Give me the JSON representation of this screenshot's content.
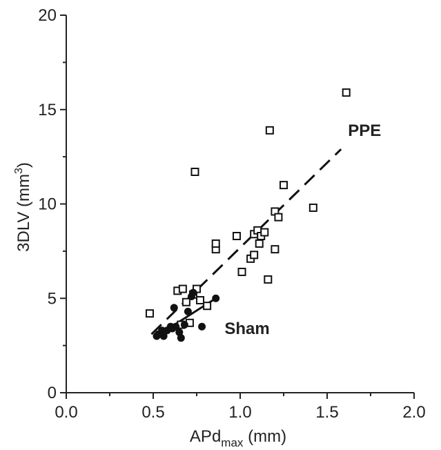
{
  "chart_data": {
    "type": "scatter",
    "title": "",
    "xlabel": {
      "main": "APd",
      "sub": "max",
      "unit": " (mm)"
    },
    "ylabel": {
      "main": "3DLV (mm",
      "sup": "3",
      "close": ")"
    },
    "xlim": [
      0,
      2
    ],
    "ylim": [
      0,
      20
    ],
    "xticks": [
      "0.0",
      "0.5",
      "1.0",
      "1.5",
      "2.0"
    ],
    "yticks": [
      "0",
      "5",
      "10",
      "15",
      "20"
    ],
    "grid": false,
    "legend": "none",
    "series": [
      {
        "name": "PPE",
        "marker": "open-square",
        "color": "#111111",
        "fit": {
          "style": "dashed",
          "x": [
            0.49,
            1.58
          ],
          "y": [
            3.1,
            12.9
          ]
        },
        "points": [
          [
            0.48,
            4.2
          ],
          [
            0.64,
            5.4
          ],
          [
            0.66,
            3.6
          ],
          [
            0.67,
            5.5
          ],
          [
            0.69,
            4.8
          ],
          [
            0.71,
            3.7
          ],
          [
            0.73,
            5.2
          ],
          [
            0.74,
            11.7
          ],
          [
            0.75,
            5.5
          ],
          [
            0.77,
            4.9
          ],
          [
            0.81,
            4.6
          ],
          [
            0.86,
            7.6
          ],
          [
            0.86,
            7.9
          ],
          [
            0.98,
            8.3
          ],
          [
            1.01,
            6.4
          ],
          [
            1.06,
            7.1
          ],
          [
            1.08,
            7.3
          ],
          [
            1.08,
            8.4
          ],
          [
            1.1,
            8.6
          ],
          [
            1.11,
            7.9
          ],
          [
            1.12,
            8.3
          ],
          [
            1.14,
            8.5
          ],
          [
            1.16,
            6.0
          ],
          [
            1.17,
            13.9
          ],
          [
            1.2,
            7.6
          ],
          [
            1.2,
            9.6
          ],
          [
            1.22,
            9.3
          ],
          [
            1.25,
            11.0
          ],
          [
            1.42,
            9.8
          ],
          [
            1.61,
            15.9
          ]
        ]
      },
      {
        "name": "Sham",
        "marker": "filled-circle",
        "color": "#111111",
        "fit": {
          "style": "solid",
          "x": [
            0.52,
            0.86
          ],
          "y": [
            3.0,
            5.0
          ]
        },
        "points": [
          [
            0.52,
            3.0
          ],
          [
            0.53,
            3.1
          ],
          [
            0.55,
            3.3
          ],
          [
            0.56,
            3.0
          ],
          [
            0.58,
            3.3
          ],
          [
            0.6,
            3.5
          ],
          [
            0.61,
            3.4
          ],
          [
            0.62,
            4.5
          ],
          [
            0.63,
            3.5
          ],
          [
            0.65,
            3.2
          ],
          [
            0.66,
            2.9
          ],
          [
            0.68,
            3.6
          ],
          [
            0.7,
            4.3
          ],
          [
            0.72,
            5.1
          ],
          [
            0.73,
            5.3
          ],
          [
            0.78,
            3.5
          ],
          [
            0.86,
            5.0
          ]
        ]
      }
    ],
    "annotations": [
      {
        "text": "PPE",
        "x": 1.62,
        "y": 13.6
      },
      {
        "text": "Sham",
        "x": 0.91,
        "y": 3.1
      }
    ]
  }
}
